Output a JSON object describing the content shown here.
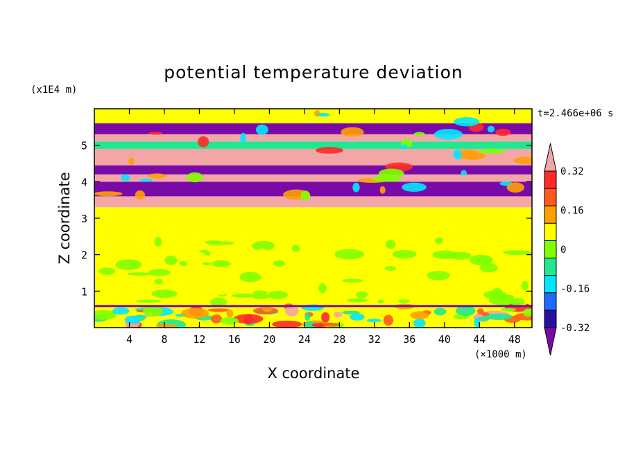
{
  "chart_data": {
    "type": "heatmap",
    "title": "potential temperature deviation",
    "xlabel": "X coordinate",
    "ylabel": "Z coordinate",
    "x_unit": "(×1000 m)",
    "y_unit": "(x1E4 m)",
    "time_label": "t=2.466e+06 s",
    "xlim": [
      0,
      50
    ],
    "ylim": [
      0,
      6
    ],
    "x_ticks": [
      4,
      8,
      12,
      16,
      20,
      24,
      28,
      32,
      36,
      40,
      44,
      48
    ],
    "y_ticks": [
      1,
      2,
      3,
      4,
      5
    ],
    "colorbar": {
      "levels": [
        -0.4,
        -0.32,
        -0.24,
        -0.16,
        -0.08,
        0,
        0.08,
        0.16,
        0.24,
        0.32,
        0.4
      ],
      "tick_labels": [
        "0.32",
        "0.16",
        "0",
        "-0.16",
        "-0.32"
      ],
      "tick_values": [
        0.32,
        0.16,
        0,
        -0.16,
        -0.32
      ],
      "colors": [
        "#7a0aa8",
        "#2a10a0",
        "#1e6cff",
        "#00e8ff",
        "#20e890",
        "#80ff00",
        "#ffff00",
        "#ffa000",
        "#ff5a1e",
        "#ff2a2a",
        "#f4a6a6"
      ],
      "extend": "both"
    },
    "layers": [
      {
        "zlim": [
          0,
          0.6
        ],
        "description_value": 0
      },
      {
        "zlim": [
          0.6,
          3.3
        ],
        "value": 0.04
      },
      {
        "zlim": [
          3.3,
          3.6
        ],
        "value": 0.4
      },
      {
        "zlim": [
          3.6,
          4.0
        ],
        "value": -0.4
      },
      {
        "zlim": [
          4.0,
          4.2
        ],
        "value": 0.4
      },
      {
        "zlim": [
          4.2,
          4.45
        ],
        "value": -0.4
      },
      {
        "zlim": [
          4.45,
          4.9
        ],
        "value": 0.4
      },
      {
        "zlim": [
          4.9,
          5.1
        ],
        "value": -0.16
      },
      {
        "zlim": [
          5.1,
          5.3
        ],
        "value": 0.4
      },
      {
        "zlim": [
          5.3,
          5.6
        ],
        "value": -0.4
      },
      {
        "zlim": [
          5.6,
          6.0
        ],
        "value": 0.04
      }
    ]
  }
}
